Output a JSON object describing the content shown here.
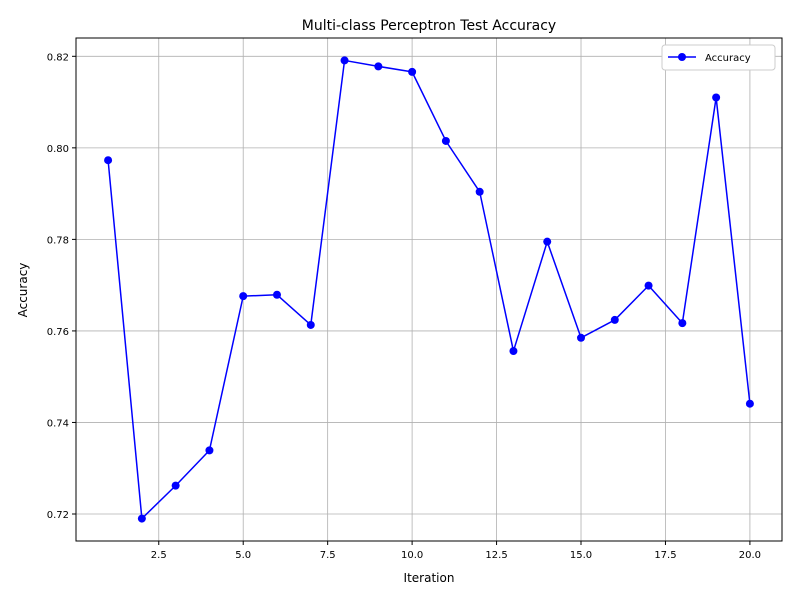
{
  "chart_data": {
    "type": "line",
    "title": "Multi-class Perceptron Test Accuracy",
    "xlabel": "Iteration",
    "ylabel": "Accuracy",
    "xlim": [
      0.05,
      20.95
    ],
    "ylim": [
      0.7141,
      0.824
    ],
    "xticks": [
      2.5,
      5.0,
      7.5,
      10.0,
      12.5,
      15.0,
      17.5,
      20.0
    ],
    "xtick_labels": [
      "2.5",
      "5.0",
      "7.5",
      "10.0",
      "12.5",
      "15.0",
      "17.5",
      "20.0"
    ],
    "yticks": [
      0.72,
      0.74,
      0.76,
      0.78,
      0.8,
      0.82
    ],
    "ytick_labels": [
      "0.72",
      "0.74",
      "0.76",
      "0.78",
      "0.80",
      "0.82"
    ],
    "grid": true,
    "legend_position": "top-right",
    "series": [
      {
        "name": "Accuracy",
        "color": "#0000ff",
        "marker": "circle",
        "x": [
          1,
          2,
          3,
          4,
          5,
          6,
          7,
          8,
          9,
          10,
          11,
          12,
          13,
          14,
          15,
          16,
          17,
          18,
          19,
          20
        ],
        "values": [
          0.7973,
          0.719,
          0.7262,
          0.7339,
          0.7676,
          0.7679,
          0.7613,
          0.8191,
          0.8178,
          0.8166,
          0.8015,
          0.7904,
          0.7556,
          0.7795,
          0.7585,
          0.7624,
          0.7699,
          0.7617,
          0.811,
          0.7441
        ]
      }
    ]
  }
}
